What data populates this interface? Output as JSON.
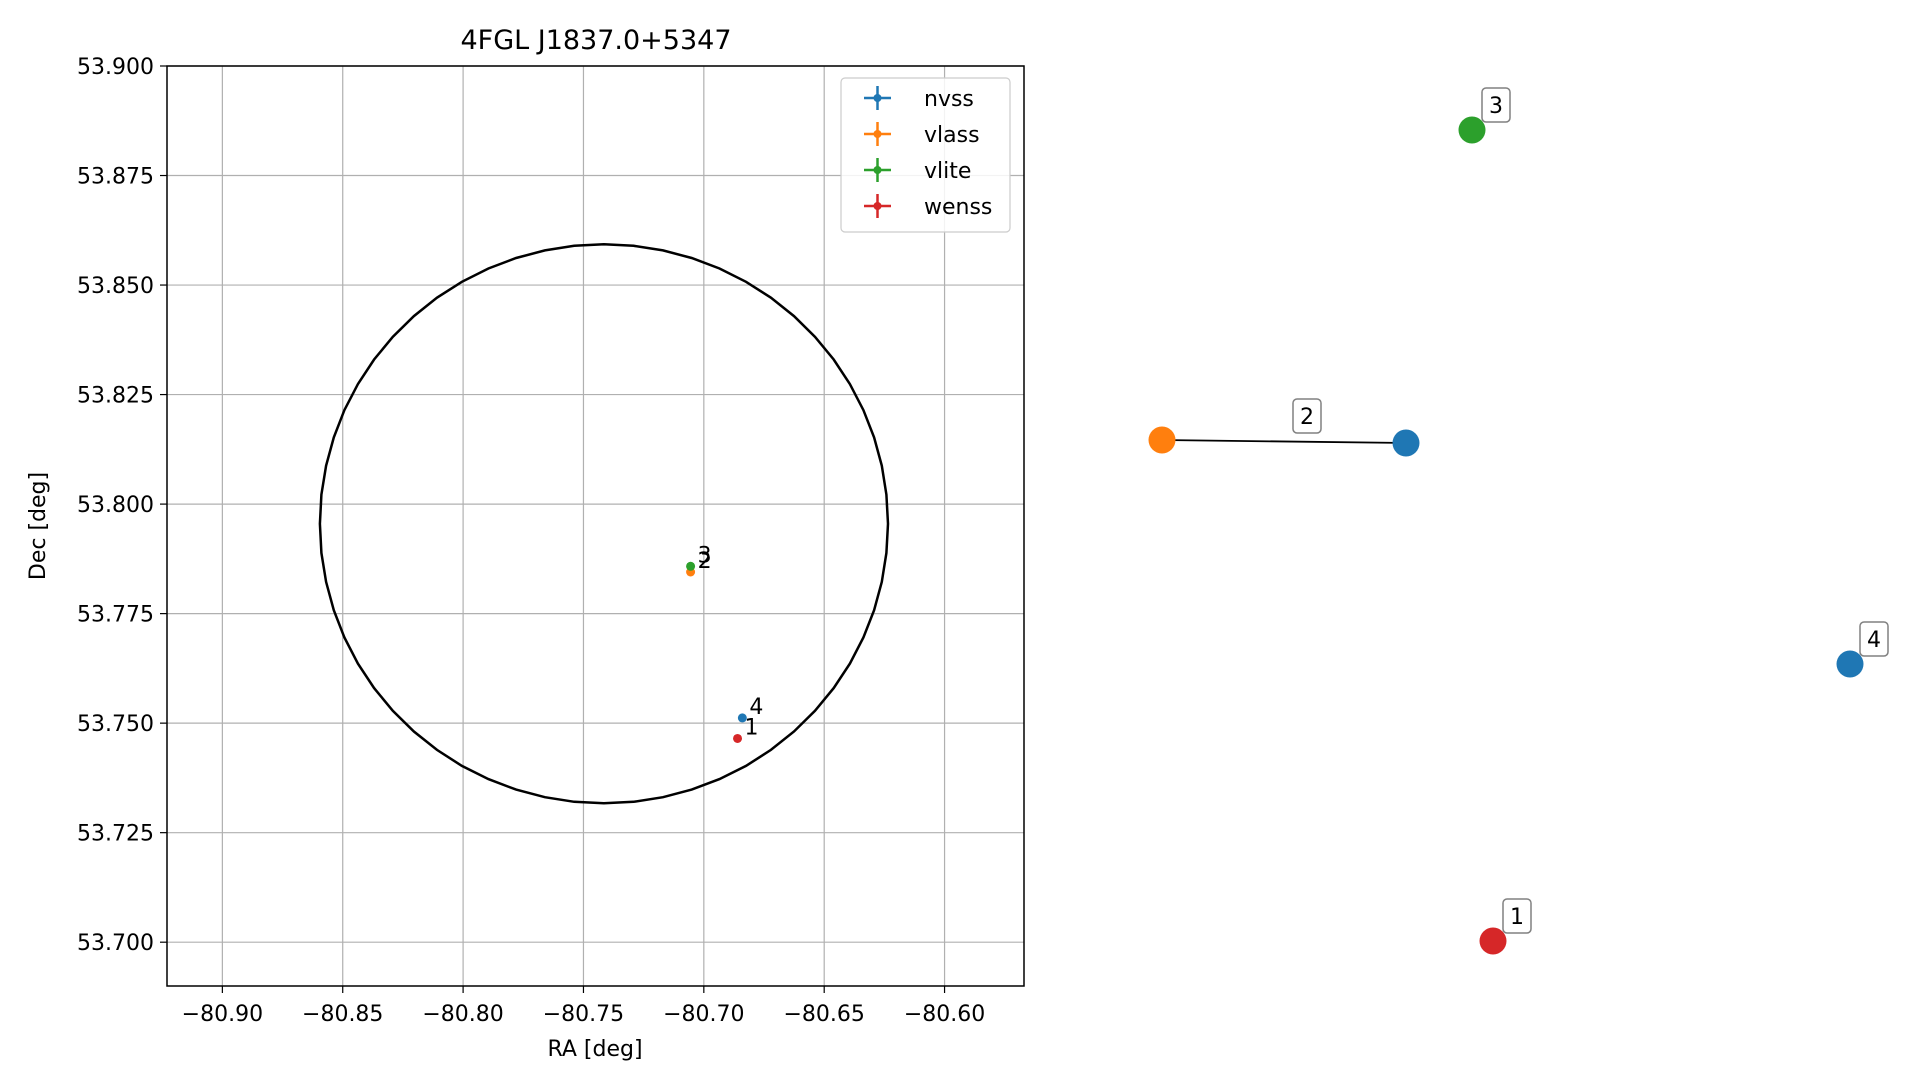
{
  "chart_data": [
    {
      "type": "scatter",
      "title": "4FGL J1837.0+5347",
      "xlabel": "RA [deg]",
      "ylabel": "Dec [deg]",
      "xlim": [
        -80.923,
        -80.567
      ],
      "ylim": [
        53.69,
        53.9
      ],
      "xticks": [
        -80.9,
        -80.85,
        -80.8,
        -80.75,
        -80.7,
        -80.65,
        -80.6
      ],
      "xtick_labels": [
        "−80.90",
        "−80.85",
        "−80.80",
        "−80.75",
        "−80.70",
        "−80.65",
        "−80.60"
      ],
      "yticks": [
        53.7,
        53.725,
        53.75,
        53.775,
        53.8,
        53.825,
        53.85,
        53.875,
        53.9
      ],
      "ytick_labels": [
        "53.700",
        "53.725",
        "53.750",
        "53.775",
        "53.800",
        "53.825",
        "53.850",
        "53.875",
        "53.900"
      ],
      "grid": true,
      "legend_position": "top-right",
      "ellipse": {
        "center": [
          -80.7415,
          53.7955
        ],
        "radius_x": 0.118,
        "radius_y": 0.0638,
        "color": "#000000"
      },
      "series": [
        {
          "name": "nvss",
          "color": "#1f77b4",
          "points": [
            {
              "x": -80.684,
              "y": 53.7512,
              "label": "4"
            }
          ]
        },
        {
          "name": "vlass",
          "color": "#ff7f0e",
          "points": [
            {
              "x": -80.7055,
              "y": 53.7845,
              "label": "2"
            }
          ]
        },
        {
          "name": "vlite",
          "color": "#2ca02c",
          "points": [
            {
              "x": -80.7055,
              "y": 53.7858,
              "label": "3"
            }
          ]
        },
        {
          "name": "wenss",
          "color": "#d62728",
          "points": [
            {
              "x": -80.686,
              "y": 53.7465,
              "label": "1"
            }
          ]
        }
      ]
    },
    {
      "type": "network",
      "nodes": [
        {
          "id": "vlass-2",
          "series": "vlass",
          "color": "#ff7f0e"
        },
        {
          "id": "nvss-2",
          "series": "nvss",
          "color": "#1f77b4",
          "label": "2"
        },
        {
          "id": "vlite-3",
          "series": "vlite",
          "color": "#2ca02c",
          "label": "3"
        },
        {
          "id": "nvss-4",
          "series": "nvss",
          "color": "#1f77b4",
          "label": "4"
        },
        {
          "id": "wenss-1",
          "series": "wenss",
          "color": "#d62728",
          "label": "1"
        }
      ],
      "edges": [
        {
          "source": "vlass-2",
          "target": "nvss-2"
        }
      ]
    }
  ]
}
